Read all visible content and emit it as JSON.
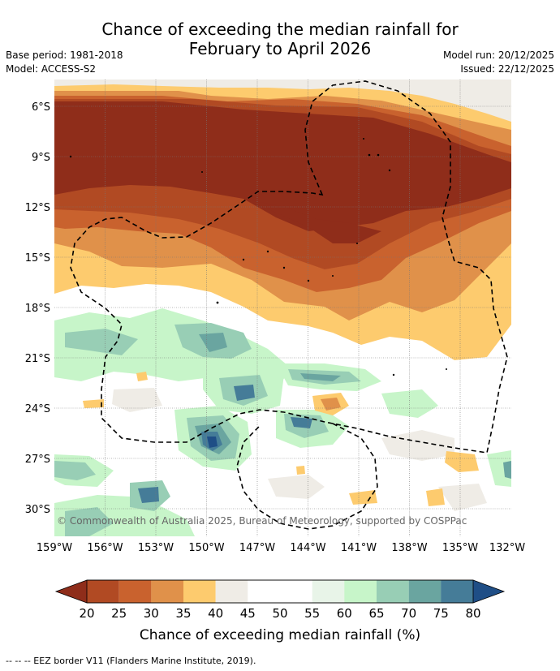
{
  "title": {
    "line1": "Chance of exceeding the median rainfall for",
    "line2": "February to April 2026"
  },
  "meta": {
    "base_period": "Base period: 1981-2018",
    "model": "Model: ACCESS-S2",
    "model_run": "Model run: 20/12/2025",
    "issued": "Issued: 22/12/2025"
  },
  "map": {
    "copyright": "© Commonwealth of Australia 2025, Bureau of Meteorology, supported by COSPPac",
    "lat_labels": [
      "6°S",
      "9°S",
      "12°S",
      "15°S",
      "18°S",
      "21°S",
      "24°S",
      "27°S",
      "30°S"
    ],
    "lon_labels": [
      "159°W",
      "156°W",
      "153°W",
      "150°W",
      "147°W",
      "144°W",
      "141°W",
      "138°W",
      "135°W",
      "132°W"
    ]
  },
  "legend": {
    "ticks": [
      "20",
      "25",
      "30",
      "35",
      "40",
      "45",
      "50",
      "55",
      "60",
      "65",
      "70",
      "75",
      "80"
    ],
    "colors": [
      "#8f2d1a",
      "#b14a23",
      "#c9622e",
      "#e0914a",
      "#fdcb6e",
      "#efece6",
      "#ffffff",
      "#ffffff",
      "#e8f4e8",
      "#c7f5c9",
      "#98ceb5",
      "#6aa5a0",
      "#457c98",
      "#1f4e86"
    ],
    "label": "Chance of exceeding median rainfall (%)"
  },
  "footer": "-- -- -- EEZ border V11 (Flanders Marine Institute, 2019)."
}
